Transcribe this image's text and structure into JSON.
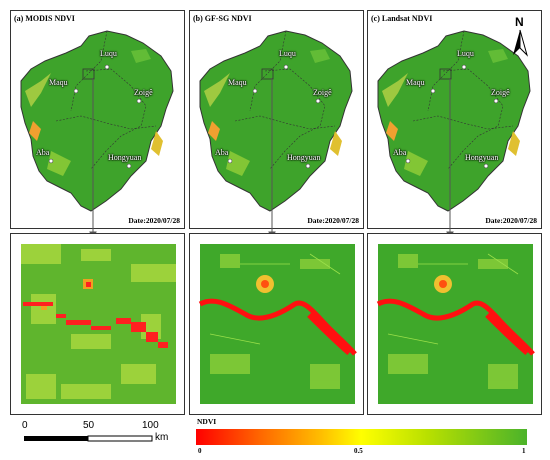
{
  "panels": [
    {
      "title": "(a) MODIS NDVI",
      "date": "Date:2020/07/28"
    },
    {
      "title": "(b) GF-SG NDVI",
      "date": "Date:2020/07/28"
    },
    {
      "title": "(c) Landsat NDVI",
      "date": "Date:2020/07/28"
    }
  ],
  "places": [
    "Luqu",
    "Maqu",
    "Zoigê",
    "Aba",
    "Hongyuan"
  ],
  "north_label": "N",
  "scale": {
    "labels": [
      "0",
      "50",
      "100"
    ],
    "unit": "km"
  },
  "legend": {
    "title": "NDVI",
    "ticks": [
      "0",
      "0.5",
      "1"
    ],
    "colors": [
      "#ff0000",
      "#ffff00",
      "#4bb32a"
    ]
  }
}
